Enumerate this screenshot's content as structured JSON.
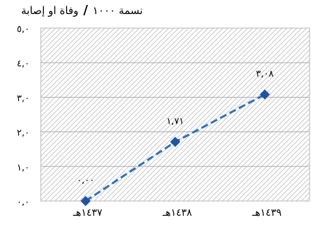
{
  "chart_data": {
    "type": "line",
    "ylabel": "إصابة او وفاة / ١٠٠٠ نسمة",
    "categories": [
      "١٤٣٧هـ",
      "١٤٣٨هـ",
      "١٤٣٩هـ"
    ],
    "series": [
      {
        "values": [
          0.0,
          1.71,
          3.08
        ],
        "data_labels": [
          "٠,٠٠",
          "١,٧١",
          "٣,٠٨"
        ],
        "color": "#2E70B8",
        "marker_color": "#1F559E"
      }
    ],
    "ylim": [
      0,
      5
    ],
    "yticks": [
      0,
      1,
      2,
      3,
      4,
      5
    ],
    "ytick_labels": [
      "٠,٠",
      "١,٠",
      "٢,٠",
      "٣,٠",
      "٤,٠",
      "٥,٠"
    ],
    "grid": true,
    "hatched_background": true
  },
  "colors": {
    "gridline": "#ABABAB",
    "hatch": "#C6C6C6",
    "border": "#B5B5B5"
  }
}
